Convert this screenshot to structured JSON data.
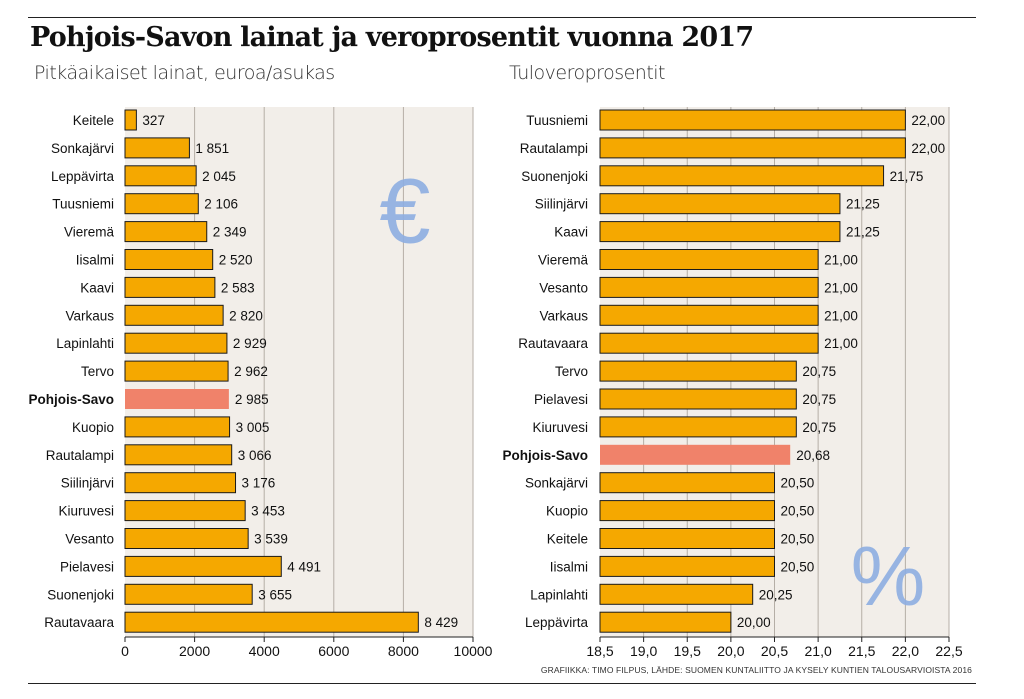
{
  "title": "Pohjois-Savon lainat ja veroprosentit vuonna 2017",
  "credit": "GRAFIIKKA: TIMO FILPUS, LÄHDE: SUOMEN KUNTALIITTO JA KYSELY KUNTIEN TALOUSARVIOISTA 2016",
  "colors": {
    "bar": "#f5a800",
    "highlight": "#f0826a",
    "panel": "#f2eee9",
    "grid": "#b5aea6",
    "symbol": "#8eaee2"
  },
  "chart_data": [
    {
      "type": "bar",
      "orientation": "horizontal",
      "subtitle": "Pitkäaikaiset lainat, euroa/asukas",
      "symbol": "€",
      "highlight": "Pohjois-Savo",
      "xlim": [
        0,
        10000
      ],
      "ticks": [
        0,
        2000,
        4000,
        6000,
        8000,
        10000
      ],
      "tick_labels": [
        "0",
        "2000",
        "4000",
        "6000",
        "8000",
        "10000"
      ],
      "categories": [
        "Keitele",
        "Sonkajärvi",
        "Leppävirta",
        "Tuusniemi",
        "Vieremä",
        "Iisalmi",
        "Kaavi",
        "Varkaus",
        "Lapinlahti",
        "Tervo",
        "Pohjois-Savo",
        "Kuopio",
        "Rautalampi",
        "Siilinjärvi",
        "Kiuruvesi",
        "Vesanto",
        "Pielavesi",
        "Suonenjoki",
        "Rautavaara"
      ],
      "values": [
        327,
        1851,
        2045,
        2106,
        2349,
        2520,
        2583,
        2820,
        2929,
        2962,
        2985,
        3005,
        3066,
        3176,
        3453,
        3539,
        4491,
        3655,
        8429
      ],
      "value_labels": [
        "327",
        "1 851",
        "2 045",
        "2 106",
        "2 349",
        "2 520",
        "2 583",
        "2 820",
        "2 929",
        "2 962",
        "2 985",
        "3 005",
        "3 066",
        "3 176",
        "3 453",
        "3 539",
        "4 491",
        "3 655",
        "8 429"
      ]
    },
    {
      "type": "bar",
      "orientation": "horizontal",
      "subtitle": "Tuloveroprosentit",
      "symbol": "%",
      "highlight": "Pohjois-Savo",
      "xlim": [
        18.5,
        22.5
      ],
      "ticks": [
        18.5,
        19.0,
        19.5,
        20.0,
        20.5,
        21.0,
        21.5,
        22.0,
        22.5
      ],
      "tick_labels": [
        "18,5",
        "19,0",
        "19,5",
        "20,0",
        "20,5",
        "21,0",
        "21,5",
        "22,0",
        "22,5"
      ],
      "categories": [
        "Tuusniemi",
        "Rautalampi",
        "Suonenjoki",
        "Siilinjärvi",
        "Kaavi",
        "Vieremä",
        "Vesanto",
        "Varkaus",
        "Rautavaara",
        "Tervo",
        "Pielavesi",
        "Kiuruvesi",
        "Pohjois-Savo",
        "Sonkajärvi",
        "Kuopio",
        "Keitele",
        "Iisalmi",
        "Lapinlahti",
        "Leppävirta"
      ],
      "values": [
        22.0,
        22.0,
        21.75,
        21.25,
        21.25,
        21.0,
        21.0,
        21.0,
        21.0,
        20.75,
        20.75,
        20.75,
        20.68,
        20.5,
        20.5,
        20.5,
        20.5,
        20.25,
        20.0
      ],
      "value_labels": [
        "22,00",
        "22,00",
        "21,75",
        "21,25",
        "21,25",
        "21,00",
        "21,00",
        "21,00",
        "21,00",
        "20,75",
        "20,75",
        "20,75",
        "20,68",
        "20,50",
        "20,50",
        "20,50",
        "20,50",
        "20,25",
        "20,00"
      ]
    }
  ]
}
